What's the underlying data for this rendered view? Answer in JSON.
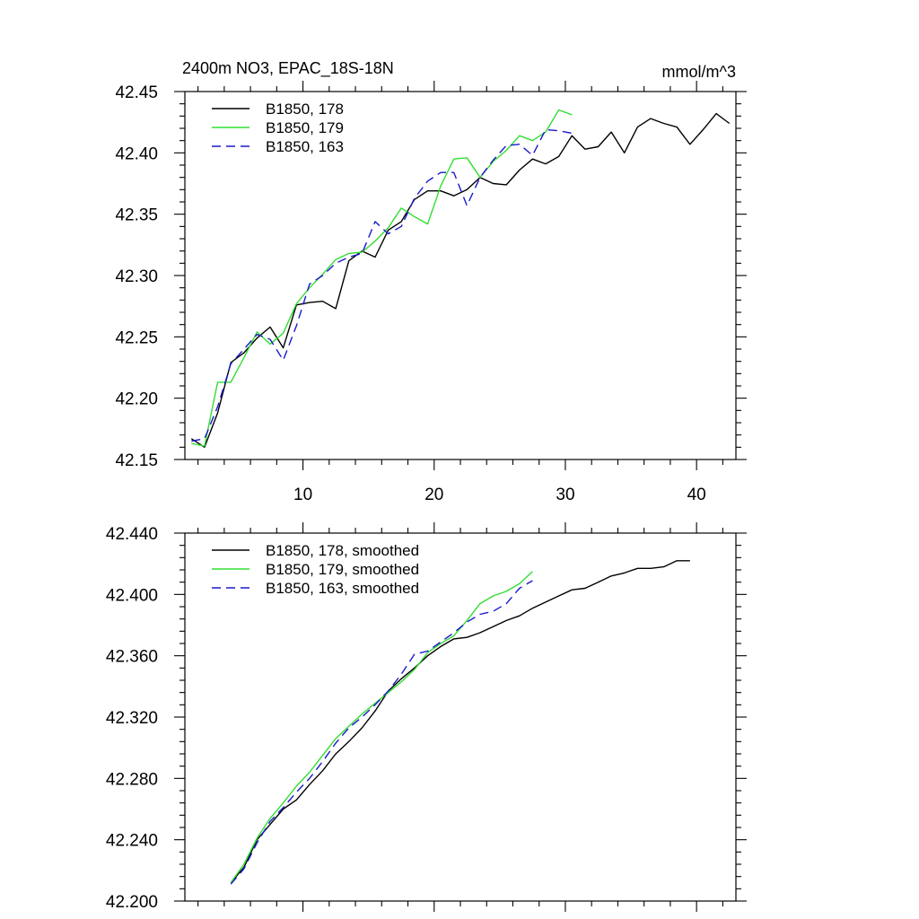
{
  "chart_data": [
    {
      "type": "line",
      "title": "2400m NO3, EPAC_18S-18N",
      "units": "mmol/m^3",
      "xlabel": "",
      "ylabel": "",
      "xlim": [
        1,
        43
      ],
      "ylim": [
        42.15,
        42.45
      ],
      "x_ticks": [
        10,
        20,
        30,
        40
      ],
      "x_tick_labels": [
        "10",
        "20",
        "30",
        "40"
      ],
      "y_ticks": [
        42.15,
        42.2,
        42.25,
        42.3,
        42.35,
        42.4,
        42.45
      ],
      "y_tick_labels": [
        "42.15",
        "42.20",
        "42.25",
        "42.30",
        "42.35",
        "42.40",
        "42.45"
      ],
      "legend_position": "top-left",
      "series": [
        {
          "name": "B1850, 178",
          "color": "#000000",
          "dash": "solid",
          "x": [
            1.5,
            2.5,
            3.5,
            4.5,
            5.5,
            6.5,
            7.5,
            8.5,
            9.5,
            10.5,
            11.5,
            12.5,
            13.5,
            14.5,
            15.5,
            16.5,
            17.5,
            18.5,
            19.5,
            20.5,
            21.5,
            22.5,
            23.5,
            24.5,
            25.5,
            26.5,
            27.5,
            28.5,
            29.5,
            30.5,
            31.5,
            32.5,
            33.5,
            34.5,
            35.5,
            36.5,
            37.5,
            38.5,
            39.5,
            40.5,
            41.5,
            42.5
          ],
          "values": [
            42.167,
            42.16,
            42.188,
            42.229,
            42.237,
            42.249,
            42.258,
            42.241,
            42.276,
            42.278,
            42.279,
            42.273,
            42.312,
            42.32,
            42.315,
            42.337,
            42.344,
            42.362,
            42.369,
            42.369,
            42.365,
            42.37,
            42.38,
            42.375,
            42.374,
            42.386,
            42.395,
            42.391,
            42.397,
            42.414,
            42.403,
            42.405,
            42.417,
            42.4,
            42.421,
            42.428,
            42.424,
            42.421,
            42.407,
            42.419,
            42.432,
            42.424
          ]
        },
        {
          "name": "B1850, 179",
          "color": "#33dd33",
          "dash": "solid",
          "x": [
            1.5,
            2.5,
            3.5,
            4.5,
            5.5,
            6.5,
            7.5,
            8.5,
            9.5,
            10.5,
            11.5,
            12.5,
            13.5,
            14.5,
            15.5,
            16.5,
            17.5,
            18.5,
            19.5,
            20.5,
            21.5,
            22.5,
            23.5,
            24.5,
            25.5,
            26.5,
            27.5,
            28.5,
            29.5,
            30.5
          ],
          "values": [
            42.163,
            42.161,
            42.213,
            42.213,
            42.233,
            42.254,
            42.244,
            42.253,
            42.277,
            42.29,
            42.301,
            42.313,
            42.318,
            42.319,
            42.328,
            42.339,
            42.355,
            42.348,
            42.342,
            42.373,
            42.395,
            42.396,
            42.38,
            42.393,
            42.402,
            42.414,
            42.41,
            42.417,
            42.435,
            42.431
          ]
        },
        {
          "name": "B1850, 163",
          "color": "#1a1acc",
          "dash": "dashed",
          "x": [
            1.5,
            2.5,
            3.5,
            4.5,
            5.5,
            6.5,
            7.5,
            8.5,
            9.5,
            10.5,
            11.5,
            12.5,
            13.5,
            14.5,
            15.5,
            16.5,
            17.5,
            18.5,
            19.5,
            20.5,
            21.5,
            22.5,
            23.5,
            24.5,
            25.5,
            26.5,
            27.5,
            28.5,
            29.5,
            30.5
          ],
          "values": [
            42.165,
            42.167,
            42.193,
            42.228,
            42.24,
            42.252,
            42.248,
            42.231,
            42.259,
            42.293,
            42.3,
            42.31,
            42.315,
            42.318,
            42.344,
            42.334,
            42.34,
            42.363,
            42.377,
            42.384,
            42.384,
            42.357,
            42.38,
            42.394,
            42.406,
            42.407,
            42.398,
            42.419,
            42.418,
            42.416
          ]
        }
      ]
    },
    {
      "type": "line",
      "title": "",
      "xlabel": "",
      "ylabel": "",
      "xlim": [
        1,
        43
      ],
      "ylim": [
        42.2,
        42.44
      ],
      "x_ticks": [
        10,
        20,
        30,
        40
      ],
      "x_tick_labels": [
        "",
        "",
        "",
        ""
      ],
      "y_ticks": [
        42.2,
        42.24,
        42.28,
        42.32,
        42.36,
        42.4,
        42.44
      ],
      "y_tick_labels": [
        "42.200",
        "42.240",
        "42.280",
        "42.320",
        "42.360",
        "42.400",
        "42.440"
      ],
      "legend_position": "top-left",
      "series": [
        {
          "name": "B1850, 178, smoothed",
          "color": "#000000",
          "dash": "solid",
          "x": [
            4.5,
            5.5,
            6.5,
            7.5,
            8.5,
            9.5,
            10.5,
            11.5,
            12.5,
            13.5,
            14.5,
            15.5,
            16.5,
            17.5,
            18.5,
            19.5,
            20.5,
            21.5,
            22.5,
            23.5,
            24.5,
            25.5,
            26.5,
            27.5,
            28.5,
            29.5,
            30.5,
            31.5,
            32.5,
            33.5,
            34.5,
            35.5,
            36.5,
            37.5,
            38.5,
            39.5
          ],
          "values": [
            42.212,
            42.222,
            42.24,
            42.25,
            42.26,
            42.266,
            42.276,
            42.285,
            42.296,
            42.304,
            42.313,
            42.324,
            42.337,
            42.345,
            42.352,
            42.36,
            42.366,
            42.371,
            42.372,
            42.375,
            42.379,
            42.383,
            42.386,
            42.391,
            42.395,
            42.399,
            42.403,
            42.404,
            42.408,
            42.412,
            42.414,
            42.417,
            42.417,
            42.418,
            42.422,
            42.422
          ]
        },
        {
          "name": "B1850, 179, smoothed",
          "color": "#33dd33",
          "dash": "solid",
          "x": [
            4.5,
            5.5,
            6.5,
            7.5,
            8.5,
            9.5,
            10.5,
            11.5,
            12.5,
            13.5,
            14.5,
            15.5,
            16.5,
            17.5,
            18.5,
            19.5,
            20.5,
            21.5,
            22.5,
            23.5,
            24.5,
            25.5,
            26.5,
            27.5
          ],
          "values": [
            42.212,
            42.224,
            42.241,
            42.254,
            42.264,
            42.275,
            42.284,
            42.295,
            42.306,
            42.314,
            42.322,
            42.329,
            42.336,
            42.343,
            42.351,
            42.362,
            42.368,
            42.373,
            42.383,
            42.394,
            42.399,
            42.402,
            42.407,
            42.415
          ]
        },
        {
          "name": "B1850, 163, smoothed",
          "color": "#1a1acc",
          "dash": "dashed",
          "x": [
            4.5,
            5.5,
            6.5,
            7.5,
            8.5,
            9.5,
            10.5,
            11.5,
            12.5,
            13.5,
            14.5,
            15.5,
            16.5,
            17.5,
            18.5,
            19.5,
            20.5,
            21.5,
            22.5,
            23.5,
            24.5,
            25.5,
            26.5,
            27.5
          ],
          "values": [
            42.211,
            42.221,
            42.238,
            42.252,
            42.261,
            42.271,
            42.28,
            42.291,
            42.303,
            42.313,
            42.32,
            42.328,
            42.337,
            42.348,
            42.361,
            42.363,
            42.369,
            42.375,
            42.382,
            42.387,
            42.389,
            42.394,
            42.404,
            42.409
          ]
        }
      ]
    }
  ]
}
